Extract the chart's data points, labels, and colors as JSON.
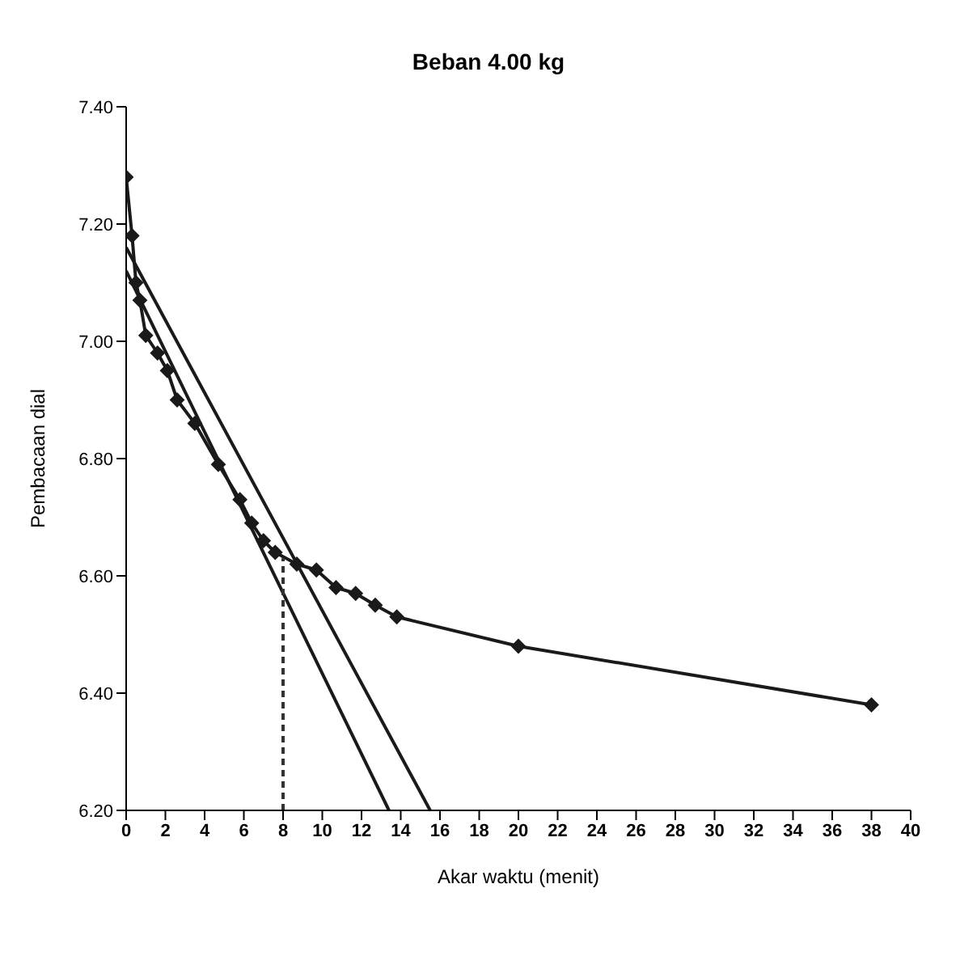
{
  "chart_data": {
    "type": "line",
    "title": "Beban 4.00 kg",
    "xlabel": "Akar waktu (menit)",
    "ylabel": "Pembacaan dial",
    "xlim": [
      0,
      40
    ],
    "xticks": [
      0,
      2,
      4,
      6,
      8,
      10,
      12,
      14,
      16,
      18,
      20,
      22,
      24,
      26,
      28,
      30,
      32,
      34,
      36,
      38,
      40
    ],
    "ylim": [
      6.2,
      7.4
    ],
    "yticks": [
      {
        "value": 6.2,
        "label": "6.20"
      },
      {
        "value": 6.4,
        "label": "6.40"
      },
      {
        "value": 6.6,
        "label": "6.60"
      },
      {
        "value": 6.8,
        "label": "6.80"
      },
      {
        "value": 7.0,
        "label": "7.00"
      },
      {
        "value": 7.2,
        "label": "7.20"
      },
      {
        "value": 7.4,
        "label": "7.40"
      }
    ],
    "grid": false,
    "marker": "diamond",
    "line_style": "solid",
    "series": [
      {
        "color": "#1a1a1a",
        "x": [
          0,
          0.3,
          0.5,
          0.7,
          1.0,
          1.6,
          2.1,
          2.6,
          3.5,
          4.7,
          5.8,
          6.4,
          7.0,
          7.6,
          8.7,
          9.7,
          10.7,
          11.7,
          12.7,
          13.8,
          20,
          38
        ],
        "values": [
          7.28,
          7.18,
          7.1,
          7.07,
          7.01,
          6.98,
          6.95,
          6.9,
          6.86,
          6.79,
          6.73,
          6.69,
          6.66,
          6.64,
          6.62,
          6.61,
          6.58,
          6.57,
          6.55,
          6.53,
          6.48,
          6.38
        ]
      },
      {
        "color": "#1a1a1a",
        "marker": "none",
        "x": [
          0,
          13.4
        ],
        "values": [
          7.12,
          6.2
        ]
      },
      {
        "color": "#1a1a1a",
        "marker": "none",
        "x": [
          0,
          15.5
        ],
        "values": [
          7.16,
          6.2
        ]
      },
      {
        "color": "#333333",
        "marker": "none",
        "line_style": "dashed",
        "x": [
          8,
          8
        ],
        "values": [
          6.2,
          6.63
        ]
      }
    ]
  }
}
